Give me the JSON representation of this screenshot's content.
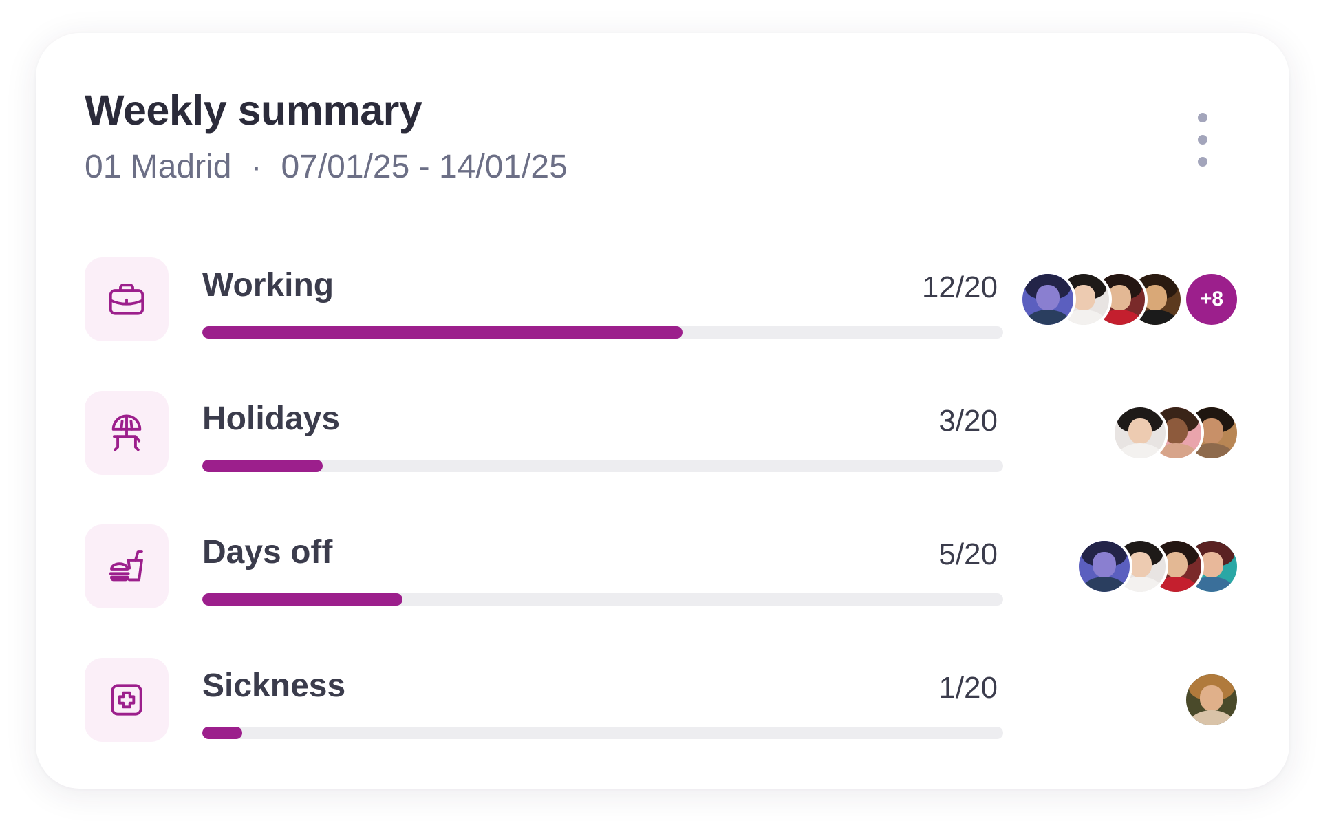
{
  "card": {
    "title": "Weekly summary",
    "location": "01 Madrid",
    "separator": "·",
    "date_range": "07/01/25 - 14/01/25",
    "menu_icon": "more-vertical-icon"
  },
  "accent_color": "#9c1f8c",
  "rows": [
    {
      "label": "Working",
      "count": "12/20",
      "progress": 0.6,
      "icon": "briefcase-icon",
      "avatar_count": 4,
      "more_label": "+8"
    },
    {
      "label": "Holidays",
      "count": "3/20",
      "progress": 0.15,
      "icon": "beach-chair-icon",
      "avatar_count": 3
    },
    {
      "label": "Days off",
      "count": "5/20",
      "progress": 0.25,
      "icon": "food-drink-icon",
      "avatar_count": 4
    },
    {
      "label": "Sickness",
      "count": "1/20",
      "progress": 0.05,
      "icon": "medical-cross-icon",
      "avatar_count": 1
    }
  ]
}
